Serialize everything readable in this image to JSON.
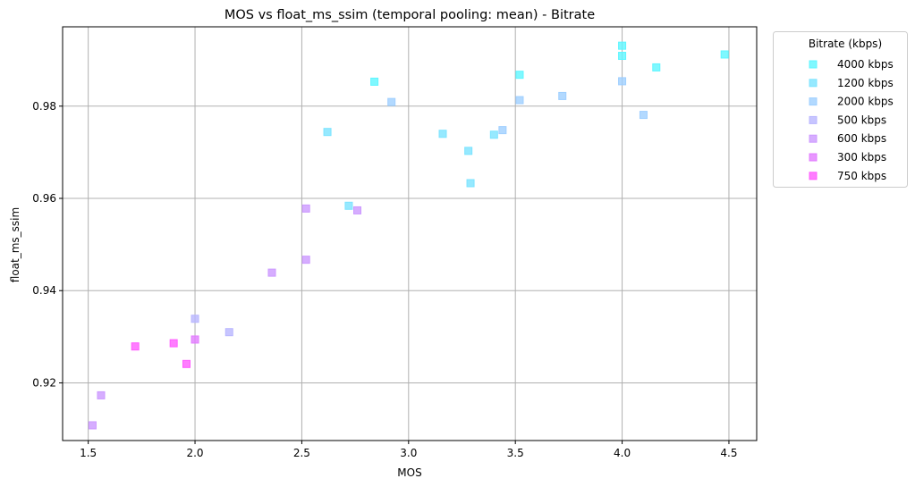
{
  "chart_data": {
    "type": "scatter",
    "title": "MOS vs float_ms_ssim (temporal pooling: mean) - Bitrate",
    "xlabel": "MOS",
    "ylabel": "float_ms_ssim",
    "xlim": [
      1.38,
      4.63
    ],
    "ylim": [
      0.9075,
      0.9972
    ],
    "xticks": [
      "1.5",
      "2.0",
      "2.5",
      "3.0",
      "3.5",
      "4.0",
      "4.5"
    ],
    "yticks": [
      "0.92",
      "0.94",
      "0.96",
      "0.98"
    ],
    "grid": true,
    "legend": {
      "title": "Bitrate (kbps)",
      "placement": "outside-right"
    },
    "series": [
      {
        "name": "4000 kbps",
        "color": "#5ff6ff",
        "points": [
          [
            2.84,
            0.9853
          ],
          [
            3.52,
            0.9868
          ],
          [
            4.0,
            0.9931
          ],
          [
            4.0,
            0.9909
          ],
          [
            4.16,
            0.9884
          ],
          [
            4.48,
            0.9912
          ]
        ]
      },
      {
        "name": "1200 kbps",
        "color": "#7ce4ff",
        "points": [
          [
            2.62,
            0.9744
          ],
          [
            2.72,
            0.9584
          ],
          [
            3.16,
            0.974
          ],
          [
            3.28,
            0.9703
          ],
          [
            3.29,
            0.9633
          ],
          [
            3.4,
            0.9738
          ]
        ]
      },
      {
        "name": "2000 kbps",
        "color": "#9fcfff",
        "points": [
          [
            2.92,
            0.9809
          ],
          [
            3.44,
            0.9748
          ],
          [
            3.52,
            0.9813
          ],
          [
            3.72,
            0.9822
          ],
          [
            4.0,
            0.9854
          ],
          [
            4.1,
            0.9781
          ]
        ]
      },
      {
        "name": "500 kbps",
        "color": "#b9b6ff",
        "points": [
          [
            2.0,
            0.9339
          ],
          [
            2.16,
            0.931
          ]
        ]
      },
      {
        "name": "600 kbps",
        "color": "#cc99ff",
        "points": [
          [
            1.52,
            0.9108
          ],
          [
            1.56,
            0.9173
          ],
          [
            2.36,
            0.9439
          ],
          [
            2.52,
            0.9578
          ],
          [
            2.52,
            0.9467
          ],
          [
            2.76,
            0.9574
          ]
        ]
      },
      {
        "name": "300 kbps",
        "color": "#e27cff",
        "points": [
          [
            2.0,
            0.9294
          ]
        ]
      },
      {
        "name": "750 kbps",
        "color": "#ff5cff",
        "points": [
          [
            1.72,
            0.9279
          ],
          [
            1.9,
            0.9286
          ],
          [
            1.96,
            0.9241
          ]
        ]
      }
    ]
  }
}
